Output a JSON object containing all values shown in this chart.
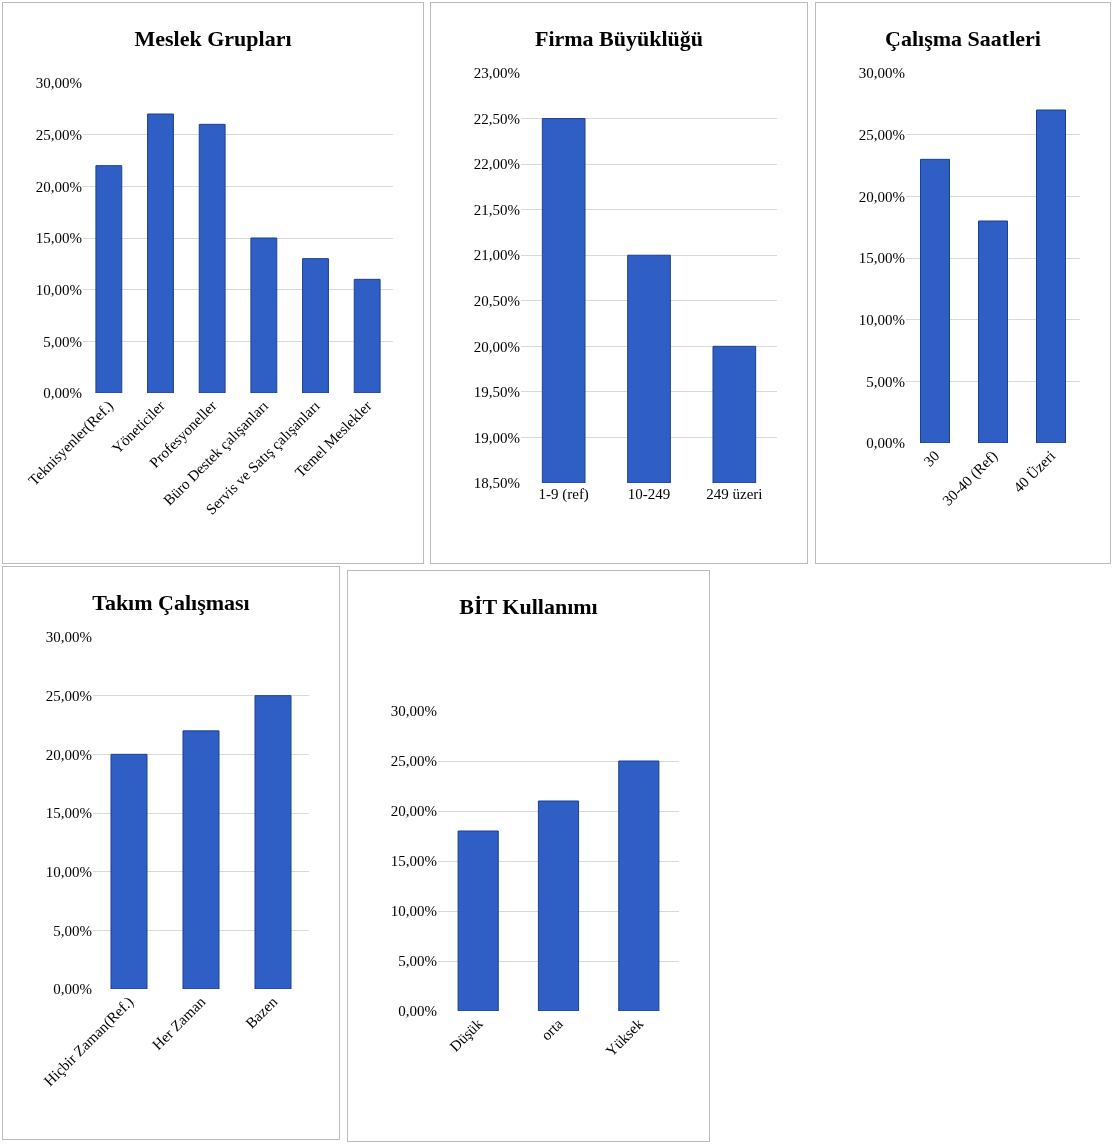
{
  "chart_data": [
    {
      "type": "bar",
      "title": "Meslek Grupları",
      "categories": [
        "Teknisyenler(Ref.)",
        "Yöneticiler",
        "Profesyoneller",
        "Büro Destek çalışanları",
        "Servis ve Satış çalışanları",
        "Temel Meslekler"
      ],
      "values": [
        22,
        27,
        26,
        15,
        13,
        11
      ],
      "color": "#2f5fc4",
      "ylim": [
        0,
        30
      ],
      "yticks": [
        {
          "value": 0,
          "label": "0,00%"
        },
        {
          "value": 5,
          "label": "5,00%"
        },
        {
          "value": 10,
          "label": "10,00%"
        },
        {
          "value": 15,
          "label": "15,00%"
        },
        {
          "value": 20,
          "label": "20,00%"
        },
        {
          "value": 25,
          "label": "25,00%"
        },
        {
          "value": 30,
          "label": "30,00%"
        }
      ],
      "grid": "y"
    },
    {
      "type": "bar",
      "title": "Firma Büyüklüğü",
      "categories": [
        "1-9 (ref)",
        "10-249",
        "249 üzeri"
      ],
      "values": [
        22.5,
        21,
        20
      ],
      "color": "#2f5fc4",
      "ylim": [
        18.5,
        23
      ],
      "yticks": [
        {
          "value": 18.5,
          "label": "18,50%"
        },
        {
          "value": 19,
          "label": "19,00%"
        },
        {
          "value": 19.5,
          "label": "19,50%"
        },
        {
          "value": 20,
          "label": "20,00%"
        },
        {
          "value": 20.5,
          "label": "20,50%"
        },
        {
          "value": 21,
          "label": "21,00%"
        },
        {
          "value": 21.5,
          "label": "21,50%"
        },
        {
          "value": 22,
          "label": "22,00%"
        },
        {
          "value": 22.5,
          "label": "22,50%"
        },
        {
          "value": 23,
          "label": "23,00%"
        }
      ],
      "grid": "y"
    },
    {
      "type": "bar",
      "title": "Çalışma Saatleri",
      "categories": [
        "30",
        "30-40 (Ref)",
        "40 Üzeri"
      ],
      "values": [
        23,
        18,
        27
      ],
      "color": "#2f5fc4",
      "ylim": [
        0,
        30
      ],
      "yticks": [
        {
          "value": 0,
          "label": "0,00%"
        },
        {
          "value": 5,
          "label": "5,00%"
        },
        {
          "value": 10,
          "label": "10,00%"
        },
        {
          "value": 15,
          "label": "15,00%"
        },
        {
          "value": 20,
          "label": "20,00%"
        },
        {
          "value": 25,
          "label": "25,00%"
        },
        {
          "value": 30,
          "label": "30,00%"
        }
      ],
      "grid": "y"
    },
    {
      "type": "bar",
      "title": "Takım Çalışması",
      "categories": [
        "Hiçbir Zaman(Ref.)",
        "Her Zaman",
        "Bazen"
      ],
      "values": [
        20,
        22,
        25
      ],
      "color": "#2f5fc4",
      "ylim": [
        0,
        30
      ],
      "yticks": [
        {
          "value": 0,
          "label": "0,00%"
        },
        {
          "value": 5,
          "label": "5,00%"
        },
        {
          "value": 10,
          "label": "10,00%"
        },
        {
          "value": 15,
          "label": "15,00%"
        },
        {
          "value": 20,
          "label": "20,00%"
        },
        {
          "value": 25,
          "label": "25,00%"
        },
        {
          "value": 30,
          "label": "30,00%"
        }
      ],
      "grid": "y"
    },
    {
      "type": "bar",
      "title": "BİT Kullanımı",
      "categories": [
        "Düşük",
        "orta",
        "Yüksek"
      ],
      "values": [
        18,
        21,
        25
      ],
      "color": "#2f5fc4",
      "ylim": [
        0,
        30
      ],
      "yticks": [
        {
          "value": 0,
          "label": "0,00%"
        },
        {
          "value": 5,
          "label": "5,00%"
        },
        {
          "value": 10,
          "label": "10,00%"
        },
        {
          "value": 15,
          "label": "15,00%"
        },
        {
          "value": 20,
          "label": "20,00%"
        },
        {
          "value": 25,
          "label": "25,00%"
        },
        {
          "value": 30,
          "label": "30,00%"
        }
      ],
      "grid": "y"
    }
  ]
}
